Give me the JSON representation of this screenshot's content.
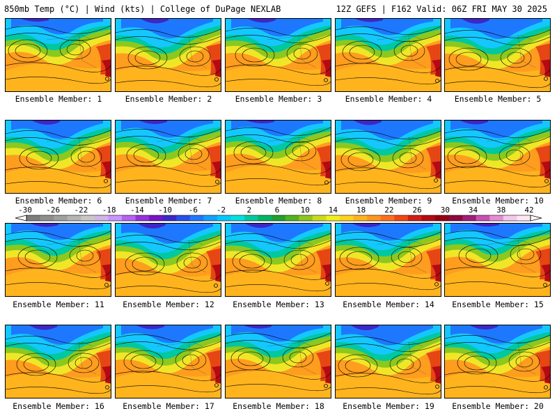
{
  "header": {
    "left": "850mb Temp (°C) | Wind (kts) | College of DuPage NEXLAB",
    "right": "12Z GEFS | F162 Valid: 06Z FRI MAY 30 2025"
  },
  "members": [
    "Ensemble Member: 1",
    "Ensemble Member: 2",
    "Ensemble Member: 3",
    "Ensemble Member: 4",
    "Ensemble Member: 5",
    "Ensemble Member: 6",
    "Ensemble Member: 7",
    "Ensemble Member: 8",
    "Ensemble Member: 9",
    "Ensemble Member: 10",
    "Ensemble Member: 11",
    "Ensemble Member: 12",
    "Ensemble Member: 13",
    "Ensemble Member: 14",
    "Ensemble Member: 15",
    "Ensemble Member: 16",
    "Ensemble Member: 17",
    "Ensemble Member: 18",
    "Ensemble Member: 19",
    "Ensemble Member: 20"
  ],
  "colorbar": {
    "labels": [
      "-30",
      "-26",
      "-22",
      "-18",
      "-14",
      "-10",
      "-6",
      "-2",
      "2",
      "6",
      "10",
      "14",
      "18",
      "22",
      "26",
      "30",
      "34",
      "38",
      "42"
    ],
    "colors": [
      "#7d7d7d",
      "#8e8e8e",
      "#a0a0a0",
      "#b4b4b4",
      "#c8c8c8",
      "#d2b4e6",
      "#c896ff",
      "#b464f0",
      "#9632dc",
      "#7814c8",
      "#3c28c8",
      "#2850e6",
      "#1e78ff",
      "#14a0ff",
      "#00c8ff",
      "#00e1e1",
      "#00c8a0",
      "#00b464",
      "#1ea032",
      "#50b41e",
      "#8cc81e",
      "#c8dc1e",
      "#f0f01e",
      "#ffd21e",
      "#ffb41e",
      "#ff961e",
      "#ff6e1e",
      "#f04614",
      "#d21e14",
      "#b40a14",
      "#960014",
      "#8c0a3c",
      "#a01e78",
      "#c850b4",
      "#e68cd2",
      "#f5c8eb",
      "#ffe6f5"
    ]
  }
}
